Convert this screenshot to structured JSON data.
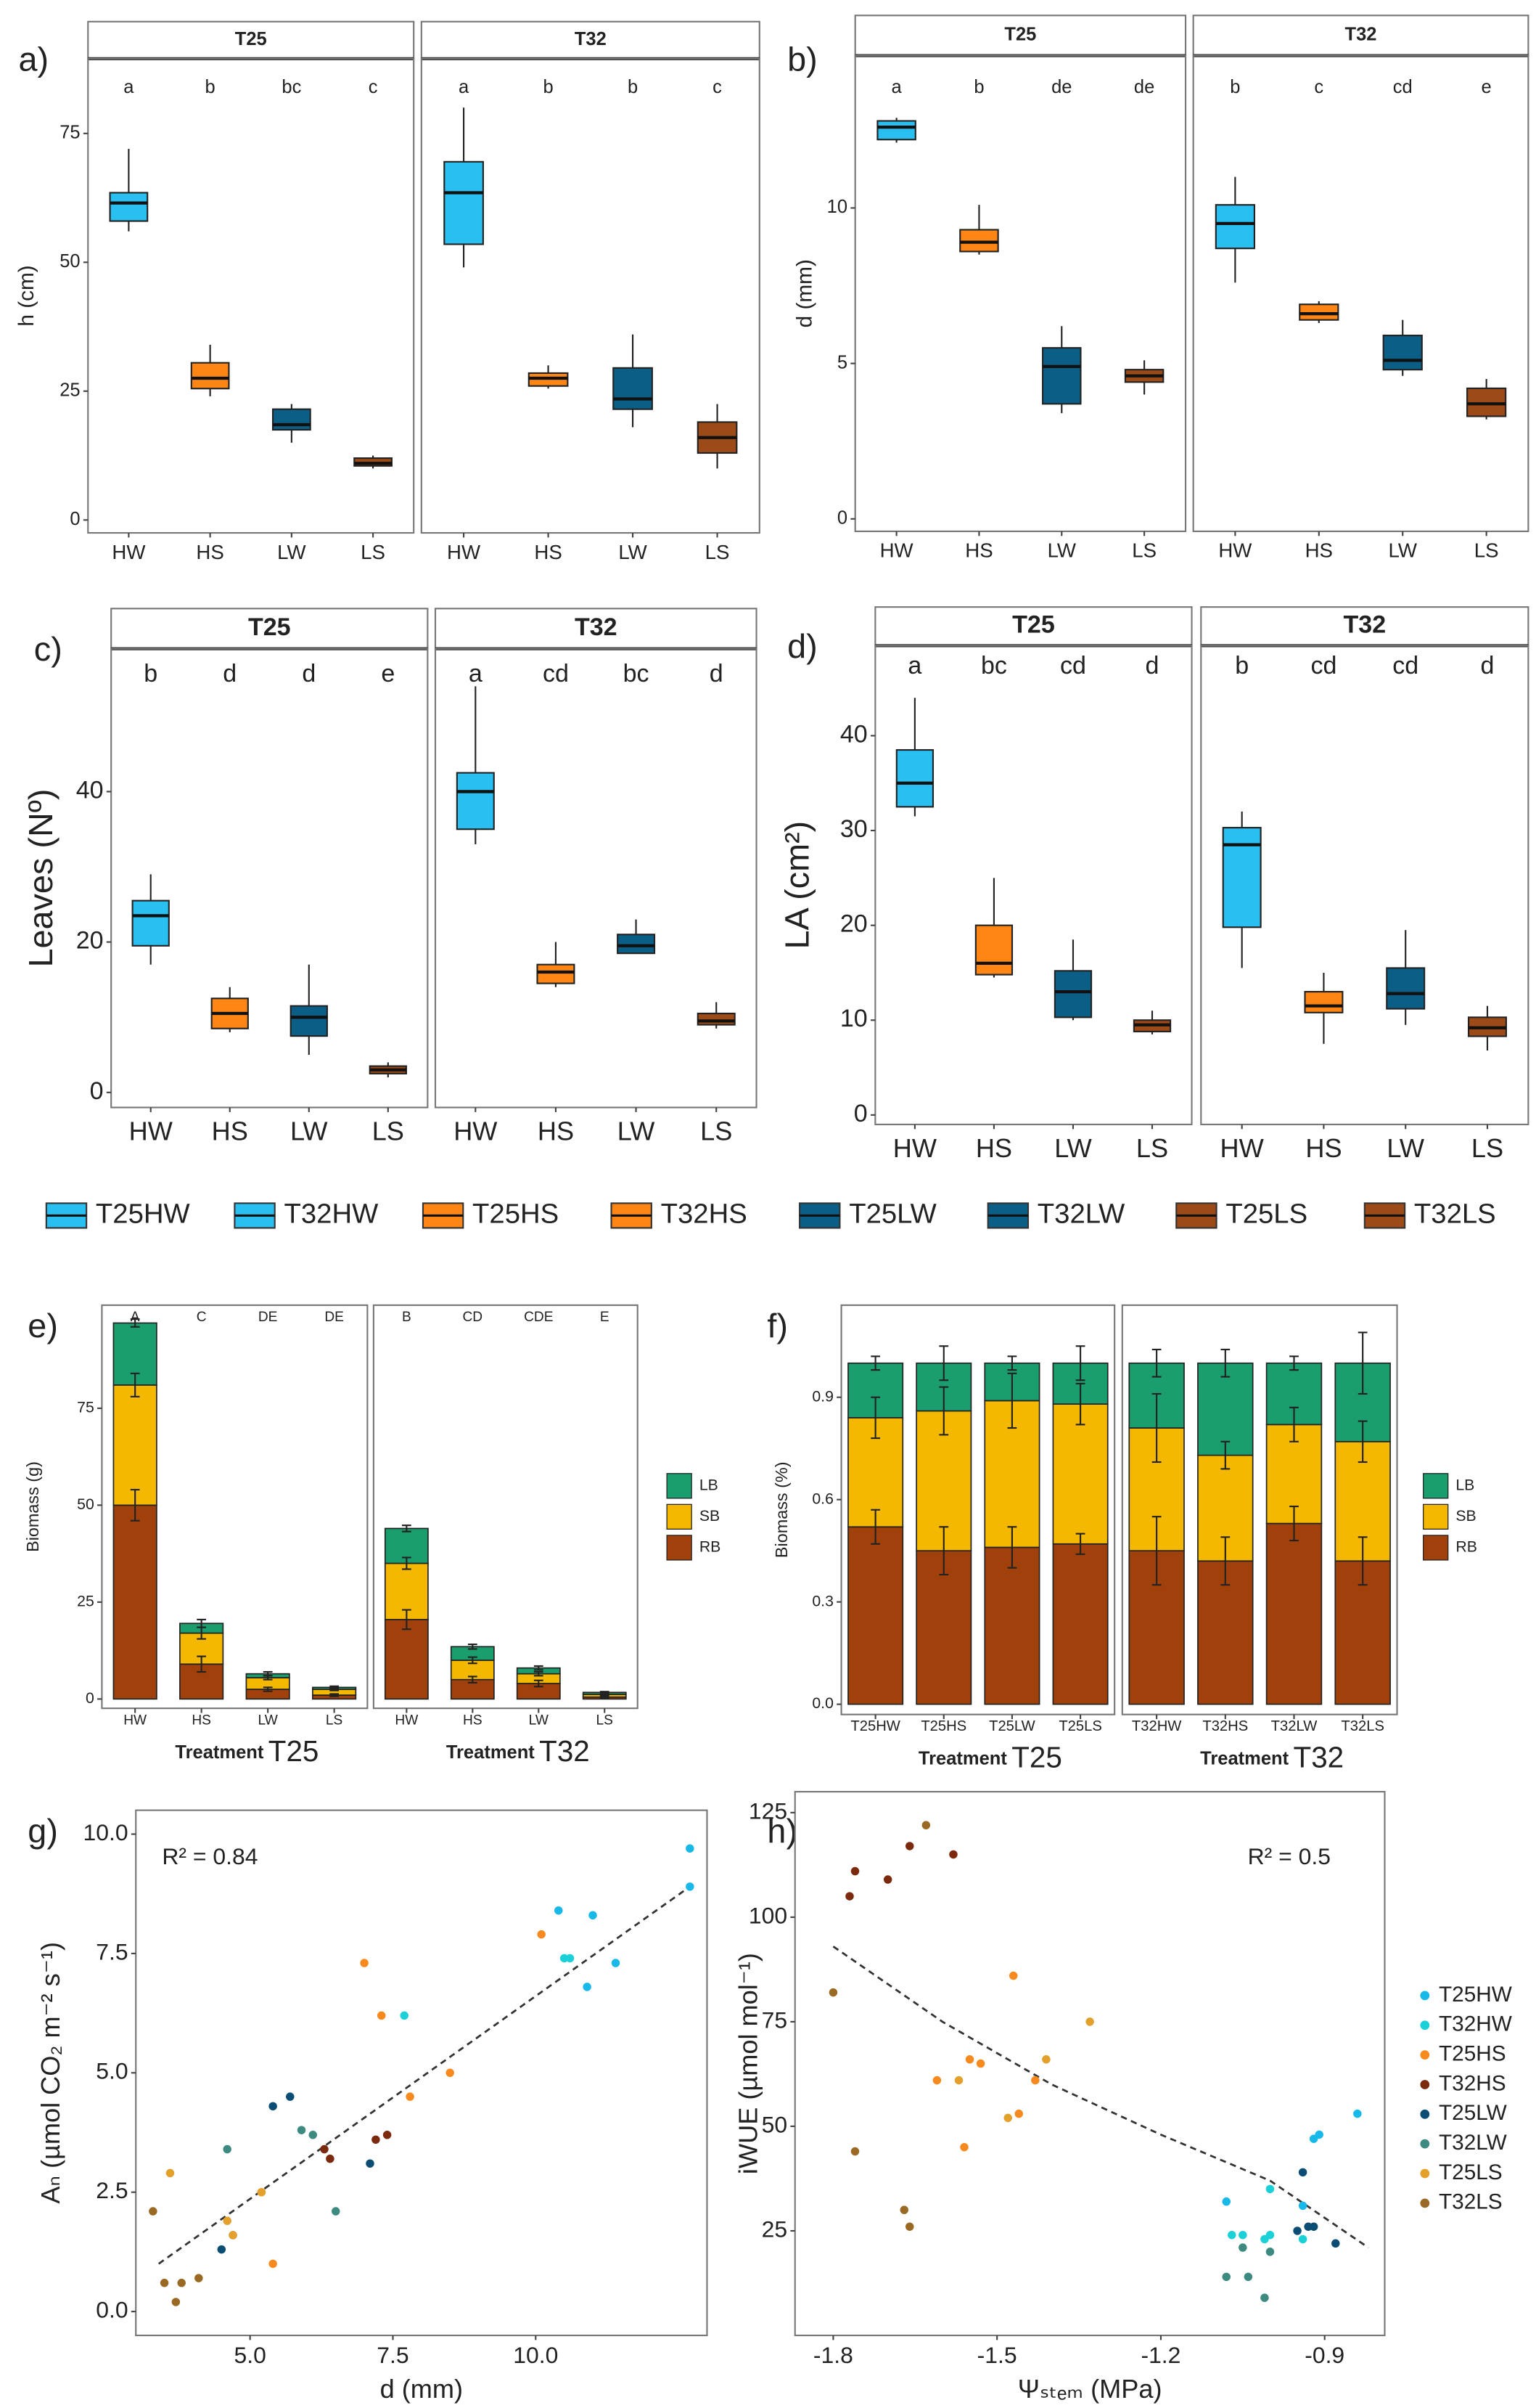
{
  "chart_data": [
    {
      "type": "box",
      "label": "a)",
      "ylabel": "h (cm)",
      "ylim": [
        -2.5,
        89.5
      ],
      "yticks": [
        0,
        25,
        50,
        75
      ],
      "categories": [
        "HW",
        "HS",
        "LW",
        "LS"
      ],
      "colors": [
        "#29bff0",
        "#ff8514",
        "#0b5e86",
        "#9c4a17"
      ],
      "facets": [
        {
          "name": "T25",
          "letters": [
            "a",
            "b",
            "bc",
            "c"
          ],
          "values": [
            [
              56,
              58,
              61.5,
              63.5,
              72
            ],
            [
              24,
              25.5,
              27.5,
              30.5,
              34
            ],
            [
              15,
              17.5,
              18.5,
              21.5,
              22.5
            ],
            [
              10,
              10.5,
              11,
              12,
              12.5
            ]
          ]
        },
        {
          "name": "T32",
          "letters": [
            "a",
            "b",
            "b",
            "c"
          ],
          "values": [
            [
              49,
              53.5,
              63.5,
              69.5,
              80
            ],
            [
              25.5,
              26,
              27.5,
              28.5,
              30
            ],
            [
              18,
              21.5,
              23.5,
              29.5,
              36
            ],
            [
              10,
              13,
              16,
              19,
              22.5
            ]
          ]
        }
      ]
    },
    {
      "type": "box",
      "label": "b)",
      "ylabel": "d (mm)",
      "ylim": [
        -0.4,
        14.9
      ],
      "yticks": [
        0,
        5,
        10
      ],
      "categories": [
        "HW",
        "HS",
        "LW",
        "LS"
      ],
      "colors": [
        "#29bff0",
        "#ff8514",
        "#0b5e86",
        "#9c4a17"
      ],
      "facets": [
        {
          "name": "T25",
          "letters": [
            "a",
            "b",
            "de",
            "de"
          ],
          "values": [
            [
              12.1,
              12.2,
              12.6,
              12.8,
              12.9
            ],
            [
              8.5,
              8.6,
              8.9,
              9.3,
              10.1
            ],
            [
              3.4,
              3.7,
              4.9,
              5.5,
              6.2
            ],
            [
              4.0,
              4.4,
              4.6,
              4.8,
              5.1
            ]
          ]
        },
        {
          "name": "T32",
          "letters": [
            "b",
            "c",
            "cd",
            "e"
          ],
          "values": [
            [
              7.6,
              8.7,
              9.5,
              10.1,
              11.0
            ],
            [
              6.3,
              6.4,
              6.6,
              6.9,
              7.0
            ],
            [
              4.6,
              4.8,
              5.1,
              5.9,
              6.4
            ],
            [
              3.2,
              3.3,
              3.7,
              4.2,
              4.5
            ]
          ]
        }
      ]
    },
    {
      "type": "box",
      "label": "c)",
      "ylabel": "Leaves (Nº)",
      "ylim": [
        -2,
        59
      ],
      "yticks": [
        0,
        20,
        40
      ],
      "categories": [
        "HW",
        "HS",
        "LW",
        "LS"
      ],
      "colors": [
        "#29bff0",
        "#ff8514",
        "#0b5e86",
        "#9c4a17"
      ],
      "facets": [
        {
          "name": "T25",
          "letters": [
            "b",
            "d",
            "d",
            "e"
          ],
          "values": [
            [
              17,
              19.5,
              23.5,
              25.5,
              29
            ],
            [
              8,
              8.5,
              10.5,
              12.5,
              14
            ],
            [
              5,
              7.5,
              10,
              11.5,
              17
            ],
            [
              2,
              2.5,
              3,
              3.5,
              4
            ]
          ]
        },
        {
          "name": "T32",
          "letters": [
            "a",
            "cd",
            "bc",
            "d"
          ],
          "values": [
            [
              33,
              35,
              40,
              42.5,
              54
            ],
            [
              14,
              14.5,
              16,
              17,
              20
            ],
            [
              18.5,
              18.5,
              19.5,
              21,
              23
            ],
            [
              8.5,
              9,
              9.5,
              10.5,
              12
            ]
          ]
        }
      ]
    },
    {
      "type": "box",
      "label": "d)",
      "ylabel": "LA (cm²)",
      "ylim": [
        -1,
        49.5
      ],
      "yticks": [
        0,
        10,
        20,
        30,
        40
      ],
      "categories": [
        "HW",
        "HS",
        "LW",
        "LS"
      ],
      "colors": [
        "#29bff0",
        "#ff8514",
        "#0b5e86",
        "#9c4a17"
      ],
      "facets": [
        {
          "name": "T25",
          "letters": [
            "a",
            "bc",
            "cd",
            "d"
          ],
          "values": [
            [
              31.5,
              32.5,
              35,
              38.5,
              44
            ],
            [
              14.5,
              14.8,
              16,
              20,
              25
            ],
            [
              10,
              10.3,
              13,
              15.2,
              18.5
            ],
            [
              8.5,
              8.8,
              9.5,
              10,
              11
            ]
          ]
        },
        {
          "name": "T32",
          "letters": [
            "b",
            "cd",
            "cd",
            "d"
          ],
          "values": [
            [
              15.5,
              19.8,
              28.5,
              30.3,
              32
            ],
            [
              7.5,
              10.8,
              11.5,
              13,
              15
            ],
            [
              9.5,
              11.2,
              12.8,
              15.5,
              19.5
            ],
            [
              6.8,
              8.3,
              9.2,
              10.3,
              11.5
            ]
          ]
        }
      ]
    },
    {
      "type": "stacked_bar",
      "label": "e)",
      "ylabel": "Biomass (g)",
      "xlabel": "Treatment",
      "ylim": [
        -2.4,
        101.6
      ],
      "yticks": [
        0,
        25,
        50,
        75
      ],
      "series": [
        {
          "name": "RB",
          "color": "#a0400a"
        },
        {
          "name": "SB",
          "color": "#f5b800"
        },
        {
          "name": "LB",
          "color": "#1a9e6e"
        }
      ],
      "facets": [
        {
          "name": "T25",
          "categories": [
            "HW",
            "HS",
            "LW",
            "LS"
          ],
          "letters": [
            "A",
            "C",
            "DE",
            "DE"
          ],
          "values": [
            [
              50,
              9,
              2.5,
              1
            ],
            [
              31,
              8,
              3,
              1.5
            ],
            [
              16,
              2.5,
              1,
              0.5
            ]
          ],
          "errors": [
            [
              4,
              2,
              0.5,
              0.3
            ],
            [
              3,
              1.5,
              0.5,
              0.3
            ],
            [
              1,
              1,
              0.5,
              0.3
            ]
          ]
        },
        {
          "name": "T32",
          "categories": [
            "HW",
            "HS",
            "LW",
            "LS"
          ],
          "letters": [
            "B",
            "CD",
            "CDE",
            "E"
          ],
          "values": [
            [
              20.5,
              5,
              4,
              0.5
            ],
            [
              14.5,
              5,
              2.5,
              0.7
            ],
            [
              9,
              3.5,
              1.5,
              0.5
            ]
          ],
          "errors": [
            [
              2.5,
              0.8,
              0.8,
              0.2
            ],
            [
              1.5,
              0.8,
              0.5,
              0.2
            ],
            [
              0.8,
              0.6,
              0.5,
              0.2
            ]
          ]
        }
      ]
    },
    {
      "type": "stacked_bar",
      "label": "f)",
      "ylabel": "Biomass (%)",
      "xlabel": "Treatment",
      "ylim": [
        -0.03,
        1.17
      ],
      "yticks": [
        {
          "value": 0,
          "label": "0.0"
        },
        0.3,
        0.6,
        0.9
      ],
      "series": [
        {
          "name": "RB",
          "color": "#a0400a"
        },
        {
          "name": "SB",
          "color": "#f5b800"
        },
        {
          "name": "LB",
          "color": "#1a9e6e"
        }
      ],
      "facets": [
        {
          "name": "T25",
          "categories": [
            "T25HW",
            "T25HS",
            "T25LW",
            "T25LS"
          ],
          "values": [
            [
              0.52,
              0.45,
              0.46,
              0.47
            ],
            [
              0.32,
              0.41,
              0.43,
              0.41
            ],
            [
              0.16,
              0.14,
              0.11,
              0.12
            ]
          ],
          "errors": [
            [
              0.05,
              0.07,
              0.06,
              0.03
            ],
            [
              0.06,
              0.07,
              0.08,
              0.06
            ],
            [
              0.02,
              0.05,
              0.02,
              0.05
            ]
          ]
        },
        {
          "name": "T32",
          "categories": [
            "T32HW",
            "T32HS",
            "T32LW",
            "T32LS"
          ],
          "values": [
            [
              0.45,
              0.42,
              0.53,
              0.42
            ],
            [
              0.36,
              0.31,
              0.29,
              0.35
            ],
            [
              0.19,
              0.27,
              0.18,
              0.23
            ]
          ],
          "errors": [
            [
              0.1,
              0.07,
              0.05,
              0.07
            ],
            [
              0.1,
              0.04,
              0.05,
              0.06
            ],
            [
              0.04,
              0.04,
              0.02,
              0.09
            ]
          ]
        }
      ]
    },
    {
      "type": "scatter",
      "label": "g)",
      "xlabel": "d (mm)",
      "ylabel": "Aₙ (µmol CO₂ m⁻² s⁻¹)",
      "annotation": "R² = 0.84",
      "xlim": [
        3.0,
        13.0
      ],
      "xticks": [
        {
          "value": 5,
          "label": "5.0"
        },
        7.5,
        {
          "value": 10,
          "label": "10.0"
        }
      ],
      "ylim": [
        -0.5,
        10.5
      ],
      "yticks": [
        {
          "value": 0,
          "label": "0.0"
        },
        2.5,
        {
          "value": 5,
          "label": "5.0"
        },
        7.5,
        {
          "value": 10,
          "label": "10.0"
        }
      ],
      "series": [
        {
          "color": "#18b9e8",
          "x": [
            12.7,
            12.7,
            11.4,
            11.0,
            10.9,
            10.4
          ],
          "y": [
            9.7,
            8.9,
            7.3,
            8.3,
            6.8,
            8.4
          ]
        },
        {
          "color": "#1cd0d8",
          "x": [
            7.7,
            10.5,
            10.6
          ],
          "y": [
            6.2,
            7.4,
            7.4
          ]
        },
        {
          "color": "#f78a1e",
          "x": [
            7.0,
            7.3,
            7.8,
            8.5,
            10.1,
            5.4,
            5.2
          ],
          "y": [
            7.3,
            6.2,
            4.5,
            5.0,
            7.9,
            1.0,
            2.5
          ]
        },
        {
          "color": "#7b2a0e",
          "x": [
            7.2,
            7.4,
            6.4,
            6.3
          ],
          "y": [
            3.6,
            3.7,
            3.2,
            3.4
          ]
        },
        {
          "color": "#0c4d74",
          "x": [
            5.4,
            5.7,
            7.1,
            4.5
          ],
          "y": [
            4.3,
            4.5,
            3.1,
            1.3
          ]
        },
        {
          "color": "#3d8a80",
          "x": [
            4.6,
            5.9,
            6.5,
            4.7,
            6.1
          ],
          "y": [
            3.4,
            3.8,
            2.1,
            1.6,
            3.7
          ]
        },
        {
          "color": "#e3a02a",
          "x": [
            5.2,
            4.7,
            4.6,
            3.6
          ],
          "y": [
            2.5,
            1.6,
            1.9,
            2.9
          ]
        },
        {
          "color": "#9a6a24",
          "x": [
            3.3,
            3.5,
            3.8,
            4.1,
            3.7
          ],
          "y": [
            2.1,
            0.6,
            0.6,
            0.7,
            0.2
          ]
        }
      ],
      "fit": {
        "x": [
          3.4,
          12.7
        ],
        "y": [
          1.0,
          8.9
        ]
      }
    },
    {
      "type": "scatter",
      "label": "h)",
      "xlabel": "Ψₛₜₑₘ (MPa)",
      "ylabel": "iWUE (µmol mol⁻¹)",
      "annotation": "R² = 0.5",
      "legend": true,
      "xlim": [
        -1.87,
        -0.79
      ],
      "xticks": [
        -1.8,
        -1.5,
        -1.2,
        -0.9
      ],
      "ylim": [
        0,
        130
      ],
      "yticks": [
        25,
        50,
        75,
        100,
        125
      ],
      "series": [
        {
          "name": "T25HW",
          "color": "#18b9e8",
          "x": [
            -0.92,
            -0.91,
            -0.84,
            -0.94,
            -1.08
          ],
          "y": [
            47,
            48,
            53,
            31,
            32
          ]
        },
        {
          "name": "T32HW",
          "color": "#1cd0d8",
          "x": [
            -1.07,
            -1.05,
            -1.01,
            -1.0,
            -1.0,
            -0.94
          ],
          "y": [
            24,
            24,
            23,
            24,
            35,
            23
          ]
        },
        {
          "name": "T25HS",
          "color": "#f78a1e",
          "x": [
            -1.61,
            -1.56,
            -1.55,
            -1.53,
            -1.47,
            -1.46,
            -1.43
          ],
          "y": [
            61,
            45,
            66,
            65,
            86,
            53,
            61
          ]
        },
        {
          "name": "T32HS",
          "color": "#7b2a0e",
          "x": [
            -1.77,
            -1.76,
            -1.7,
            -1.66,
            -1.58
          ],
          "y": [
            105,
            111,
            109,
            117,
            115
          ]
        },
        {
          "name": "T25LW",
          "color": "#0c4d74",
          "x": [
            -0.95,
            -0.94,
            -0.93,
            -0.92,
            -0.88
          ],
          "y": [
            25,
            39,
            26,
            26,
            22
          ]
        },
        {
          "name": "T32LW",
          "color": "#3d8a80",
          "x": [
            -1.08,
            -1.05,
            -1.04,
            -1.01,
            -1.0
          ],
          "y": [
            14,
            21,
            14,
            9,
            20
          ]
        },
        {
          "name": "T25LS",
          "color": "#e3a02a",
          "x": [
            -1.57,
            -1.48,
            -1.41,
            -1.33
          ],
          "y": [
            61,
            52,
            66,
            75
          ]
        },
        {
          "name": "T32LS",
          "color": "#9a6a24",
          "x": [
            -1.8,
            -1.76,
            -1.67,
            -1.66,
            -1.63
          ],
          "y": [
            82,
            44,
            30,
            26,
            122
          ]
        }
      ],
      "fit": {
        "x": [
          -1.8,
          -1.6,
          -1.4,
          -1.2,
          -1.0,
          -0.82
        ],
        "y": [
          93,
          75,
          60,
          48,
          37,
          21
        ]
      }
    }
  ],
  "legend": {
    "items": [
      {
        "name": "T25HW",
        "color": "#29bff0"
      },
      {
        "name": "T32HW",
        "color": "#29bff0"
      },
      {
        "name": "T25HS",
        "color": "#ff8514"
      },
      {
        "name": "T32HS",
        "color": "#ff8514"
      },
      {
        "name": "T25LW",
        "color": "#0b5e86"
      },
      {
        "name": "T32LW",
        "color": "#0b5e86"
      },
      {
        "name": "T25LS",
        "color": "#9c4a17"
      },
      {
        "name": "T32LS",
        "color": "#9c4a17"
      }
    ]
  }
}
